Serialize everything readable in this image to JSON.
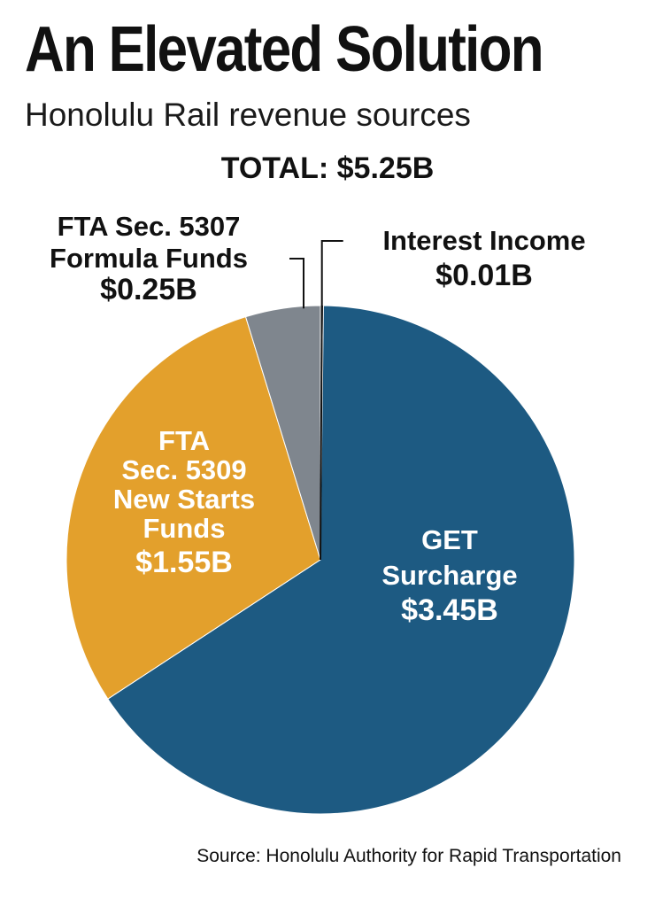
{
  "title": "An Elevated Solution",
  "subtitle": "Honolulu Rail revenue sources",
  "total_label": "TOTAL: $5.25B",
  "source": "Source: Honolulu Authority for Rapid Transportation",
  "colors": {
    "get_surcharge": "#1d5a82",
    "fta_5309": "#e3a02c",
    "fta_5307": "#7f868e",
    "interest_income": "#111111",
    "separator": "#ffffff",
    "leader_line": "#111111"
  },
  "chart_data": {
    "type": "pie",
    "title": "An Elevated Solution",
    "subtitle": "Honolulu Rail revenue sources",
    "units": "billion USD",
    "total": 5.25,
    "start_angle_deg": 0,
    "direction": "clockwise",
    "slices": [
      {
        "key": "interest_income",
        "value": 0.01,
        "label_lines": [
          "Interest Income"
        ],
        "value_label": "$0.01B",
        "label_position": "outside-top-right",
        "color_key": "interest_income"
      },
      {
        "key": "get_surcharge",
        "value": 3.45,
        "label_lines": [
          "GET",
          "Surcharge"
        ],
        "value_label": "$3.45B",
        "label_position": "inside",
        "color_key": "get_surcharge"
      },
      {
        "key": "fta_5309",
        "value": 1.55,
        "label_lines": [
          "FTA",
          "Sec. 5309",
          "New Starts",
          "Funds"
        ],
        "value_label": "$1.55B",
        "label_position": "inside",
        "color_key": "fta_5309"
      },
      {
        "key": "fta_5307",
        "value": 0.25,
        "label_lines": [
          "FTA Sec. 5307",
          "Formula Funds"
        ],
        "value_label": "$0.25B",
        "label_position": "outside-top-left",
        "color_key": "fta_5307"
      }
    ]
  }
}
